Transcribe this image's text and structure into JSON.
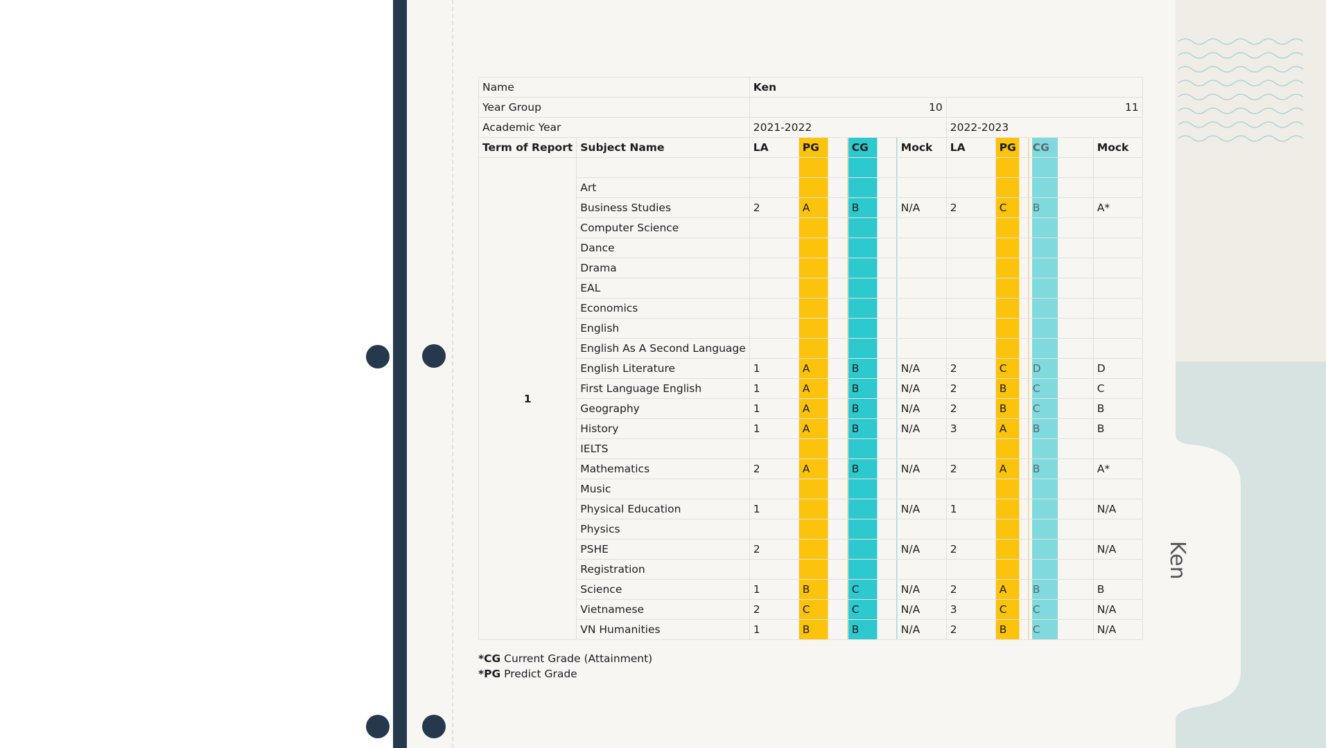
{
  "student": {
    "name_label": "Name",
    "name": "Ken",
    "year_group_label": "Year Group",
    "year_groups": [
      10,
      11
    ],
    "academic_year_label": "Academic Year",
    "academic_years": [
      "2021-2022",
      "2022-2023"
    ]
  },
  "table": {
    "columns": [
      "Term of Report",
      "Subject Name",
      "LA",
      "PG",
      "CG",
      "Mock",
      "LA",
      "PG",
      "CG",
      "Mock"
    ],
    "term": 1,
    "rows": [
      [
        "Art",
        null,
        null,
        null,
        null,
        null,
        null,
        null,
        null
      ],
      [
        "Business Studies",
        2,
        "A",
        "B",
        "N/A",
        2,
        "C",
        "B",
        "A*"
      ],
      [
        "Computer Science",
        null,
        null,
        null,
        null,
        null,
        null,
        null,
        null
      ],
      [
        "Dance",
        null,
        null,
        null,
        null,
        null,
        null,
        null,
        null
      ],
      [
        "Drama",
        null,
        null,
        null,
        null,
        null,
        null,
        null,
        null
      ],
      [
        "EAL",
        null,
        null,
        null,
        null,
        null,
        null,
        null,
        null
      ],
      [
        "Economics",
        null,
        null,
        null,
        null,
        null,
        null,
        null,
        null
      ],
      [
        "English",
        null,
        null,
        null,
        null,
        null,
        null,
        null,
        null
      ],
      [
        "English As A Second Language",
        null,
        null,
        null,
        null,
        null,
        null,
        null,
        null
      ],
      [
        "English Literature",
        1,
        "A",
        "B",
        "N/A",
        2,
        "C",
        "D",
        "D"
      ],
      [
        "First Language English",
        1,
        "A",
        "B",
        "N/A",
        2,
        "B",
        "C",
        "C"
      ],
      [
        "Geography",
        1,
        "A",
        "B",
        "N/A",
        2,
        "B",
        "C",
        "B"
      ],
      [
        "History",
        1,
        "A",
        "B",
        "N/A",
        3,
        "A",
        "B",
        "B"
      ],
      [
        "IELTS",
        null,
        null,
        null,
        null,
        null,
        null,
        null,
        null
      ],
      [
        "Mathematics",
        2,
        "A",
        "B",
        "N/A",
        2,
        "A",
        "B",
        "A*"
      ],
      [
        "Music",
        null,
        null,
        null,
        null,
        null,
        null,
        null,
        null
      ],
      [
        "Physical Education",
        1,
        null,
        null,
        "N/A",
        1,
        null,
        null,
        "N/A"
      ],
      [
        "Physics",
        null,
        null,
        null,
        null,
        null,
        null,
        null,
        null
      ],
      [
        "PSHE",
        2,
        null,
        null,
        "N/A",
        2,
        null,
        null,
        "N/A"
      ],
      [
        "Registration",
        null,
        null,
        null,
        null,
        null,
        null,
        null,
        null
      ],
      [
        "Science",
        1,
        "B",
        "C",
        "N/A",
        2,
        "A",
        "B",
        "B"
      ],
      [
        "Vietnamese",
        2,
        "C",
        "C",
        "N/A",
        3,
        "C",
        "C",
        "N/A"
      ],
      [
        "VN Humanities",
        1,
        "B",
        "B",
        "N/A",
        2,
        "B",
        "C",
        "N/A"
      ]
    ]
  },
  "footnotes": [
    {
      "key": "*CG",
      "text": "Current Grade (Attainment)"
    },
    {
      "key": "*PG",
      "text": "Predict Grade"
    }
  ],
  "tab_label": "Ken"
}
